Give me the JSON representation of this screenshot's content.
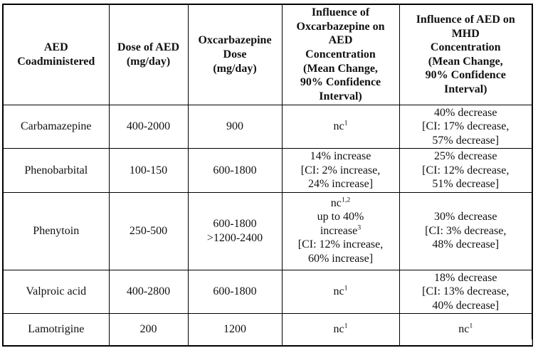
{
  "table": {
    "headers": [
      {
        "id": "aed-coadministered",
        "lines": [
          "AED",
          "Coadministered"
        ]
      },
      {
        "id": "dose-of-aed",
        "lines": [
          "Dose of AED",
          "(mg/day)"
        ]
      },
      {
        "id": "oxcarbazepine-dose",
        "lines": [
          "Oxcarbazepine",
          "Dose",
          "(mg/day)"
        ]
      },
      {
        "id": "influence-oxc-on-aed",
        "lines": [
          "Influence of",
          "Oxcarbazepine on",
          "AED",
          "Concentration",
          "(Mean Change,",
          "90% Confidence",
          "Interval)"
        ]
      },
      {
        "id": "influence-aed-on-mhd",
        "lines": [
          "Influence of AED on",
          "MHD",
          "Concentration",
          "(Mean Change,",
          "90% Confidence",
          "Interval)"
        ]
      }
    ],
    "rows": [
      {
        "cells": [
          {
            "lines": [
              "Carbamazepine"
            ]
          },
          {
            "lines": [
              "400-2000"
            ]
          },
          {
            "lines": [
              "900"
            ]
          },
          {
            "lines": [
              "nc^{1}"
            ]
          },
          {
            "lines": [
              "40% decrease",
              "[CI: 17% decrease,",
              "57% decrease]"
            ]
          }
        ]
      },
      {
        "cells": [
          {
            "lines": [
              "Phenobarbital"
            ]
          },
          {
            "lines": [
              "100-150"
            ]
          },
          {
            "lines": [
              "600-1800"
            ]
          },
          {
            "lines": [
              "14% increase",
              "[CI: 2% increase,",
              "24% increase]"
            ]
          },
          {
            "lines": [
              "25% decrease",
              "[CI: 12% decrease,",
              "51% decrease]"
            ]
          }
        ]
      },
      {
        "cells": [
          {
            "lines": [
              "Phenytoin"
            ]
          },
          {
            "lines": [
              "250-500"
            ]
          },
          {
            "lines": [
              "600-1800",
              ">1200-2400"
            ]
          },
          {
            "lines": [
              "nc^{1,2}",
              "up to 40%",
              "increase^{3}",
              "[CI: 12% increase,",
              "60% increase]"
            ]
          },
          {
            "lines": [
              "30% decrease",
              "[CI: 3% decrease,",
              "48% decrease]"
            ]
          }
        ]
      },
      {
        "cells": [
          {
            "lines": [
              "Valproic acid"
            ]
          },
          {
            "lines": [
              "400-2800"
            ]
          },
          {
            "lines": [
              "600-1800"
            ]
          },
          {
            "lines": [
              "nc^{1}"
            ]
          },
          {
            "lines": [
              "18% decrease",
              "[CI: 13% decrease,",
              "40% decrease]"
            ]
          }
        ]
      },
      {
        "cells": [
          {
            "lines": [
              "Lamotrigine"
            ]
          },
          {
            "lines": [
              "200"
            ]
          },
          {
            "lines": [
              "1200"
            ]
          },
          {
            "lines": [
              "nc^{1}"
            ]
          },
          {
            "lines": [
              "nc^{1}"
            ]
          }
        ]
      }
    ]
  },
  "colors": {
    "background": "#ffffff",
    "border": "#000000",
    "text": "#111111"
  }
}
